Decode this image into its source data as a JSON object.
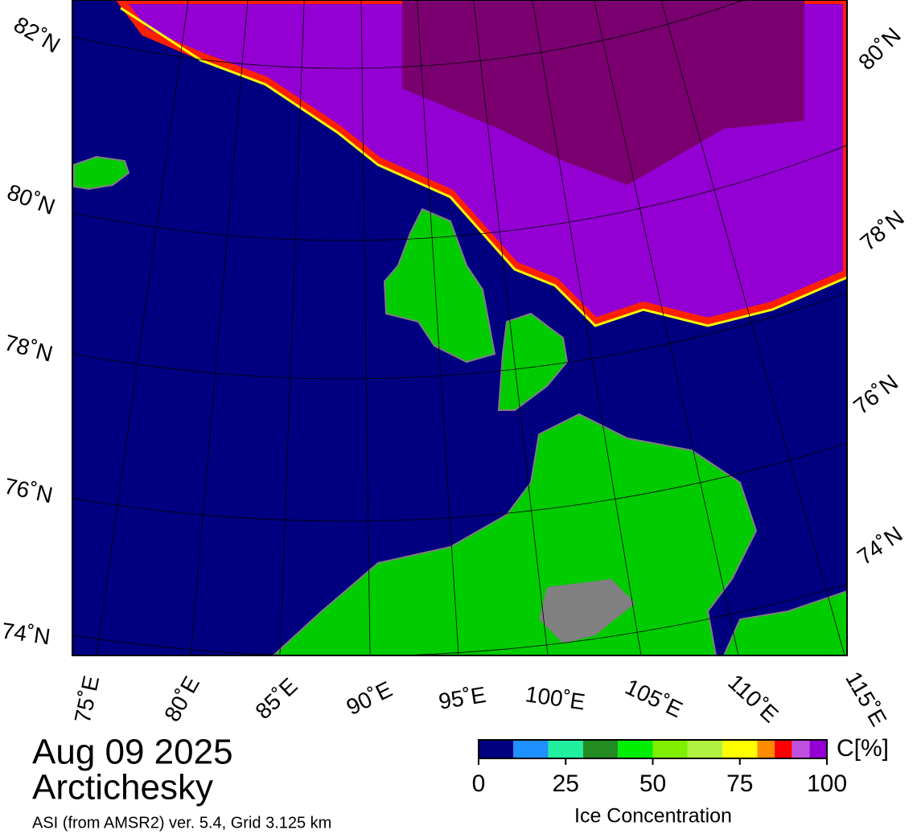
{
  "map": {
    "lat_labels_left": [
      "82˚N",
      "80˚N",
      "78˚N",
      "76˚N",
      "74˚N"
    ],
    "lat_labels_right": [
      "80˚N",
      "78˚N",
      "76˚N",
      "74˚N"
    ],
    "lon_labels": [
      "75˚E",
      "80˚E",
      "85˚E",
      "90˚E",
      "95˚E",
      "100˚E",
      "105˚E",
      "110˚E",
      "115˚E"
    ]
  },
  "date": "Aug 09 2025",
  "region": "Arctichesky",
  "source": "ASI (from AMSR2) ver. 5.4,  Grid 3.125 km",
  "colorbar": {
    "title": "Ice Concentration",
    "unit": "C[%]",
    "range": [
      0,
      100
    ],
    "ticks": [
      0,
      25,
      50,
      75,
      100
    ],
    "bounds": [
      0,
      10,
      20,
      30,
      40,
      50,
      60,
      70,
      80,
      85,
      90,
      95,
      100
    ],
    "colors": [
      "#000080",
      "#1e90ff",
      "#20f0a0",
      "#228b22",
      "#00ee00",
      "#7fee00",
      "#b0f040",
      "#ffff00",
      "#ff8c00",
      "#ff0000",
      "#c050e0",
      "#9400d3"
    ]
  }
}
